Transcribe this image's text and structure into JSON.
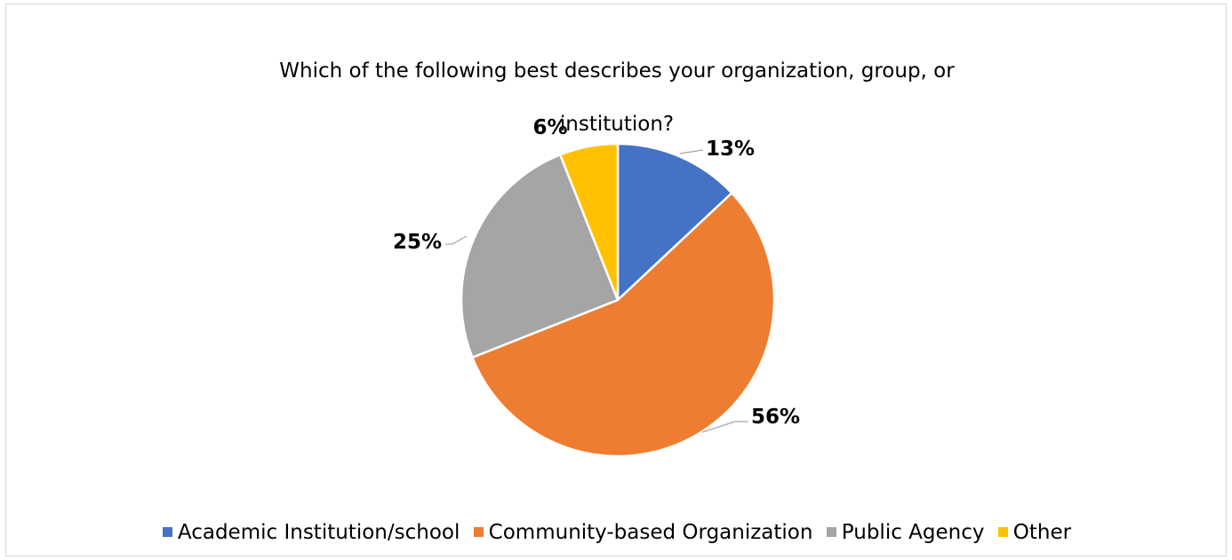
{
  "chart_data": {
    "type": "pie",
    "title": "Which of the following best describes your organization, group, or institution?",
    "title_lines": [
      "Which of the following best describes your organization, group, or",
      "institution?"
    ],
    "categories": [
      "Academic Institution/school",
      "Community-based Organization",
      "Public Agency",
      "Other"
    ],
    "values": [
      13,
      56,
      25,
      6
    ],
    "labels": [
      "13%",
      "56%",
      "25%",
      "6%"
    ],
    "colors": [
      "#4472C4",
      "#ED7D31",
      "#A5A5A5",
      "#FFC000"
    ],
    "legend_position": "bottom"
  }
}
